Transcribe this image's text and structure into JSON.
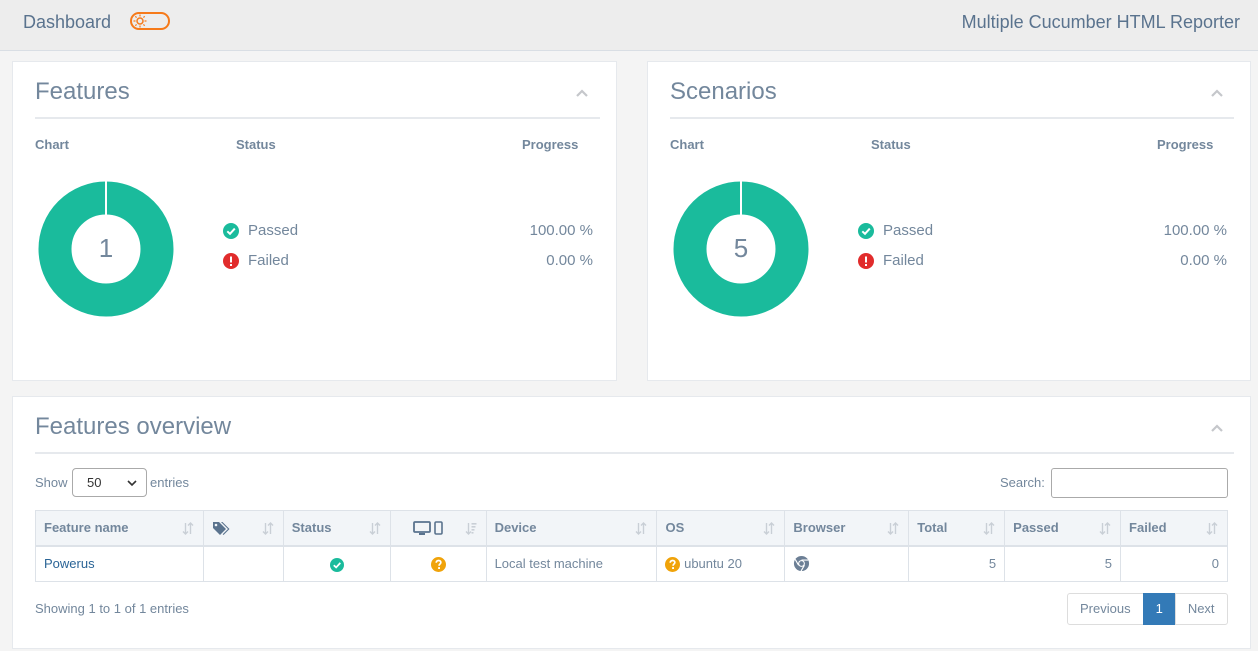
{
  "topbar": {
    "brand": "Dashboard",
    "report_title": "Multiple Cucumber HTML Reporter"
  },
  "features_panel": {
    "title": "Features",
    "col_chart": "Chart",
    "col_status": "Status",
    "col_progress": "Progress",
    "count": "1",
    "passed_label": "Passed",
    "passed_pct": "100.00 %",
    "failed_label": "Failed",
    "failed_pct": "0.00 %"
  },
  "scenarios_panel": {
    "title": "Scenarios",
    "col_chart": "Chart",
    "col_status": "Status",
    "col_progress": "Progress",
    "count": "5",
    "passed_label": "Passed",
    "passed_pct": "100.00 %",
    "failed_label": "Failed",
    "failed_pct": "0.00 %"
  },
  "overview": {
    "title": "Features overview",
    "show_label": "Show",
    "show_value": "50",
    "entries_label": "entries",
    "search_label": "Search:",
    "headers": {
      "feature_name": "Feature name",
      "status": "Status",
      "device": "Device",
      "os": "OS",
      "browser": "Browser",
      "total": "Total",
      "passed": "Passed",
      "failed": "Failed"
    },
    "rows": [
      {
        "feature_name": "Powerus",
        "device": "Local test machine",
        "os": "ubuntu 20",
        "total": "5",
        "passed": "5",
        "failed": "0"
      }
    ],
    "showing": "Showing 1 to 1 of 1 entries",
    "pager": {
      "previous": "Previous",
      "page": "1",
      "next": "Next"
    }
  },
  "colors": {
    "passed": "#1abb9c",
    "failed": "#e12c2c",
    "unknown": "#f0a30a",
    "accent": "#f67a1a"
  },
  "icons": [
    "sun-icon",
    "chevron-up-icon",
    "check-circle-icon",
    "exclamation-circle-icon",
    "tags-icon",
    "desktop-icon",
    "mobile-icon",
    "sort-icon",
    "question-circle-icon",
    "chrome-icon"
  ]
}
